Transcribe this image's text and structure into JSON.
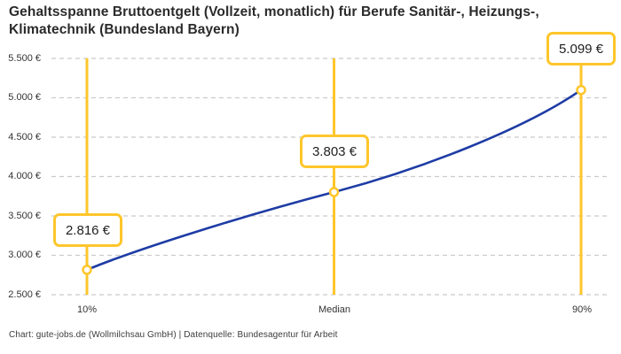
{
  "chart_data": {
    "type": "line",
    "title": "Gehaltsspanne Bruttoentgelt (Vollzeit, monatlich) für Berufe Sanitär-, Heizungs-,\nKlimatechnik (Bundesland Bayern)",
    "x_categories": [
      "10%",
      "Median",
      "90%"
    ],
    "values": [
      2816,
      3803,
      5099
    ],
    "point_labels": [
      "2.816 €",
      "3.803 €",
      "5.099 €"
    ],
    "y_tick_labels": [
      "5.500 €",
      "5.000 €",
      "4.500 €",
      "4.000 €",
      "3.500 €",
      "3.000 €",
      "2.500 €"
    ],
    "y_tick_values": [
      5500,
      5000,
      4500,
      4000,
      3500,
      3000,
      2500
    ],
    "ylim": [
      2500,
      5500
    ],
    "xlabel": "",
    "ylabel": "",
    "legend": "none",
    "grid": "horizontal-dashed",
    "colors": {
      "line": "#1E3CA5",
      "accent": "#FFC62B",
      "grid": "#CBCBCB",
      "marker_fill": "#FFFFFF"
    }
  },
  "footer": {
    "credit": "Chart: gute-jobs.de (Wollmilchsau GmbH) | Datenquelle: Bundesagentur für Arbeit"
  }
}
